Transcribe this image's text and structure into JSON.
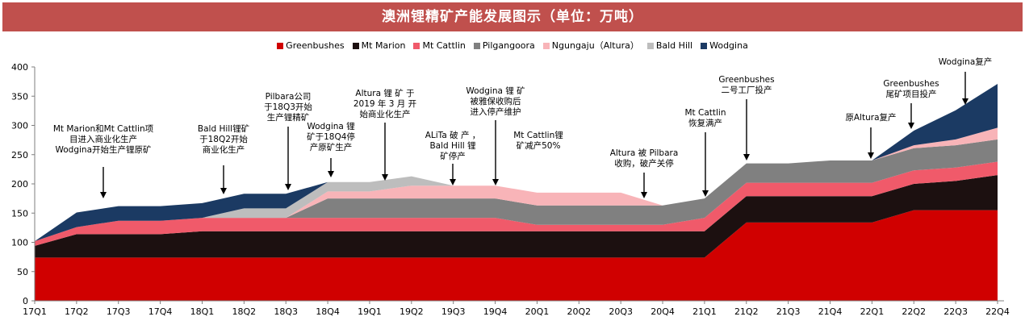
{
  "title": "澳洲锂精矿产能发展图示（单位：万吨）",
  "colors": {
    "title_bar": "#c0504d",
    "Greenbushes": "#d00000",
    "Mt Marion": "#1c1010",
    "Mt Cattlin": "#f05a6a",
    "Pilgangoora": "#808080",
    "Ngungaju": "#f8b4b8",
    "Bald Hill": "#bdbdbd",
    "Wodgina": "#1b3a63"
  },
  "legend": [
    {
      "label": "Greenbushes",
      "series": "Greenbushes"
    },
    {
      "label": "Mt Marion",
      "series": "Mt Marion"
    },
    {
      "label": "Mt Cattlin",
      "series": "Mt Cattlin"
    },
    {
      "label": "Pilgangoora",
      "series": "Pilgangoora"
    },
    {
      "label": "Ngungaju（Altura）",
      "series": "Ngungaju"
    },
    {
      "label": "Bald Hill",
      "series": "Bald Hill"
    },
    {
      "label": "Wodgina",
      "series": "Wodgina"
    }
  ],
  "chart_data": {
    "type": "area",
    "stacked": true,
    "title": "澳洲锂精矿产能发展图示（单位：万吨）",
    "xlabel": "",
    "ylabel": "",
    "ylim": [
      0,
      400
    ],
    "yticks": [
      0,
      50,
      100,
      150,
      200,
      250,
      300,
      350,
      400
    ],
    "grid": false,
    "legend_position": "top",
    "categories": [
      "17Q1",
      "17Q2",
      "17Q3",
      "17Q4",
      "18Q1",
      "18Q2",
      "18Q3",
      "18Q4",
      "19Q1",
      "19Q2",
      "19Q3",
      "19Q4",
      "20Q1",
      "20Q2",
      "20Q3",
      "20Q4",
      "21Q1",
      "21Q2",
      "21Q3",
      "21Q4",
      "22Q1",
      "22Q2",
      "22Q3",
      "22Q4"
    ],
    "series": [
      {
        "name": "Greenbushes",
        "values": [
          74,
          74,
          74,
          74,
          74,
          74,
          74,
          74,
          74,
          74,
          74,
          74,
          74,
          74,
          74,
          74,
          74,
          134,
          134,
          134,
          134,
          155,
          155,
          155
        ]
      },
      {
        "name": "Mt Marion",
        "values": [
          20,
          40,
          40,
          40,
          45,
          45,
          45,
          45,
          45,
          45,
          45,
          45,
          45,
          45,
          45,
          45,
          45,
          45,
          45,
          45,
          45,
          45,
          50,
          60
        ]
      },
      {
        "name": "Mt Cattlin",
        "values": [
          8,
          12,
          23,
          23,
          23,
          23,
          23,
          23,
          23,
          23,
          23,
          23,
          11,
          11,
          11,
          11,
          23,
          23,
          23,
          23,
          23,
          23,
          23,
          23
        ]
      },
      {
        "name": "Pilgangoora",
        "values": [
          0,
          0,
          0,
          0,
          0,
          0,
          0,
          33,
          33,
          33,
          33,
          33,
          33,
          33,
          33,
          33,
          33,
          33,
          33,
          38,
          38,
          38,
          38,
          38
        ]
      },
      {
        "name": "Ngungaju",
        "values": [
          0,
          0,
          0,
          0,
          0,
          0,
          0,
          12,
          12,
          22,
          22,
          22,
          22,
          22,
          22,
          0,
          0,
          0,
          0,
          0,
          0,
          5,
          10,
          20
        ]
      },
      {
        "name": "Bald Hill",
        "values": [
          0,
          0,
          0,
          0,
          0,
          16,
          16,
          16,
          16,
          16,
          0,
          0,
          0,
          0,
          0,
          0,
          0,
          0,
          0,
          0,
          0,
          0,
          0,
          0
        ]
      },
      {
        "name": "Wodgina",
        "values": [
          0,
          25,
          25,
          25,
          25,
          25,
          25,
          0,
          0,
          0,
          0,
          0,
          0,
          0,
          0,
          0,
          0,
          0,
          0,
          0,
          0,
          25,
          50,
          75
        ]
      }
    ],
    "annotations": [
      {
        "x": "17Q3",
        "y": 168,
        "lines": [
          "Mt Marion和Mt Cattlin项",
          "目进入商业化生产",
          "Wodgina开始生产锂原矿"
        ]
      },
      {
        "x": "18Q2",
        "y": 182,
        "lines": [
          "Bald Hill锂矿",
          "于18Q2开始",
          "商业化生产"
        ]
      },
      {
        "x": "18Q3",
        "y": 188,
        "lines": [
          "Pilbara公司",
          "于18Q3开始",
          "生产锂精矿"
        ]
      },
      {
        "x": "18Q4",
        "y": 203,
        "lines": [
          "Wodgina 锂",
          "矿于18Q4停",
          "产原矿生产"
        ]
      },
      {
        "x": "19Q1",
        "y": 205,
        "lines": [
          "Altura 锂 矿 于",
          "2019 年 3 月 开",
          "始商业化生产"
        ]
      },
      {
        "x": "19Q3",
        "y": 197,
        "lines": [
          "ALiTa 破 产 ，",
          "Bald Hill 锂",
          "矿停产"
        ]
      },
      {
        "x": "19Q4",
        "y": 197,
        "lines": [
          "Wodgina 锂 矿",
          "被雅保收购后",
          "进入停产维护"
        ]
      },
      {
        "x": "20Q1",
        "y": 0,
        "lines": [
          "Mt Cattlin锂",
          "矿减产50%"
        ]
      },
      {
        "x": "20Q3",
        "y": 172,
        "lines": [
          "Altura 被 Pilbara",
          "收购，破产关停"
        ]
      },
      {
        "x": "21Q1",
        "y": 178,
        "lines": [
          "Mt Cattlin",
          "恢复满产"
        ]
      },
      {
        "x": "21Q2",
        "y": 238,
        "lines": [
          "Greenbushes",
          "二号工厂投产"
        ]
      },
      {
        "x": "22Q1",
        "y": 243,
        "lines": [
          "原Altura复产"
        ]
      },
      {
        "x": "22Q2",
        "y": 291,
        "lines": [
          "Greenbushes",
          "尾矿项目投产"
        ]
      },
      {
        "x": "22Q3",
        "y": 331,
        "lines": [
          "Wodgina复产"
        ]
      }
    ]
  }
}
